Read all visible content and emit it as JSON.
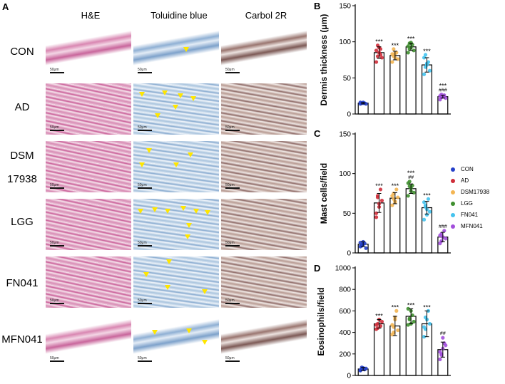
{
  "figure": {
    "panel_a_letter": "A",
    "column_headers": [
      "H&E",
      "Toluidine blue",
      "Carbol 2R"
    ],
    "row_labels": [
      "CON",
      "AD",
      "DSM",
      "17938",
      "LGG",
      "FN041",
      "MFN041"
    ],
    "scale_bar_text": "50μm"
  },
  "legend": {
    "items": [
      {
        "label": "CON",
        "color": "#2540c9"
      },
      {
        "label": "AD",
        "color": "#cf2e3a"
      },
      {
        "label": "DSM17938",
        "color": "#f3b552"
      },
      {
        "label": "LGG",
        "color": "#3f8f2f"
      },
      {
        "label": "FN041",
        "color": "#45c3ee"
      },
      {
        "label": "MFN041",
        "color": "#a24fdb"
      }
    ]
  },
  "chart_data": [
    {
      "panel": "B",
      "type": "bar",
      "ylabel": "Dermis thickness (μm)",
      "ylim": [
        0,
        150
      ],
      "yticks": [
        0,
        50,
        100,
        150
      ],
      "categories": [
        "CON",
        "AD",
        "DSM17938",
        "LGG",
        "FN041",
        "MFN041"
      ],
      "values": [
        15,
        85,
        81,
        93,
        68,
        24
      ],
      "errors": [
        1,
        8,
        6,
        5,
        10,
        2
      ],
      "points": [
        [
          14,
          15,
          16,
          15,
          14,
          16,
          15,
          15
        ],
        [
          72,
          95,
          85,
          90,
          78,
          88,
          80,
          92,
          82
        ],
        [
          72,
          90,
          78,
          85,
          76,
          83,
          80,
          84
        ],
        [
          85,
          98,
          92,
          96,
          88,
          94,
          90,
          99
        ],
        [
          55,
          82,
          68,
          72,
          60,
          78,
          65,
          70
        ],
        [
          20,
          27,
          24,
          26,
          22,
          25,
          23
        ]
      ],
      "significance": [
        "",
        "***",
        "***",
        "***",
        "***",
        "***"
      ],
      "comparison": [
        "",
        "",
        "",
        "",
        "",
        "###"
      ]
    },
    {
      "panel": "C",
      "type": "bar",
      "ylabel": "Mast cells/field",
      "ylim": [
        0,
        150
      ],
      "yticks": [
        0,
        50,
        100,
        150
      ],
      "categories": [
        "CON",
        "AD",
        "DSM17938",
        "LGG",
        "FN041",
        "MFN041"
      ],
      "values": [
        11,
        63,
        69,
        81,
        57,
        20
      ],
      "errors": [
        3,
        12,
        7,
        6,
        8,
        6
      ],
      "points": [
        [
          8,
          10,
          14,
          12,
          6,
          13,
          9,
          11
        ],
        [
          45,
          72,
          58,
          80,
          66,
          50,
          70,
          62
        ],
        [
          60,
          75,
          65,
          80,
          70,
          72,
          68,
          64
        ],
        [
          72,
          90,
          78,
          85,
          76,
          88,
          84,
          82
        ],
        [
          42,
          60,
          55,
          68,
          52,
          64,
          58,
          48
        ],
        [
          12,
          24,
          20,
          28,
          18,
          22,
          15
        ]
      ],
      "significance": [
        "",
        "***",
        "***",
        "***",
        "***",
        ""
      ],
      "comparison": [
        "",
        "",
        "",
        "##",
        "",
        "###"
      ]
    },
    {
      "panel": "D",
      "type": "bar",
      "ylabel": "Eosinophils/field",
      "ylim": [
        0,
        1000
      ],
      "yticks": [
        0,
        200,
        400,
        600,
        800,
        1000
      ],
      "categories": [
        "CON",
        "AD",
        "DSM17938",
        "LGG",
        "FN041",
        "MFN041"
      ],
      "values": [
        60,
        480,
        460,
        550,
        480,
        240
      ],
      "errors": [
        15,
        40,
        90,
        70,
        120,
        70
      ],
      "points": [
        [
          45,
          60,
          70,
          55,
          65,
          50,
          75
        ],
        [
          430,
          480,
          520,
          460,
          500,
          470,
          440
        ],
        [
          380,
          450,
          520,
          600,
          420,
          470,
          400,
          540
        ],
        [
          470,
          520,
          600,
          560,
          500,
          620,
          530,
          480
        ],
        [
          360,
          430,
          520,
          600,
          480,
          450,
          540
        ],
        [
          150,
          200,
          250,
          300,
          280,
          220,
          190,
          350
        ]
      ],
      "significance": [
        "",
        "***",
        "***",
        "***",
        "***",
        ""
      ],
      "comparison": [
        "",
        "",
        "",
        "",
        "",
        "##"
      ]
    }
  ]
}
